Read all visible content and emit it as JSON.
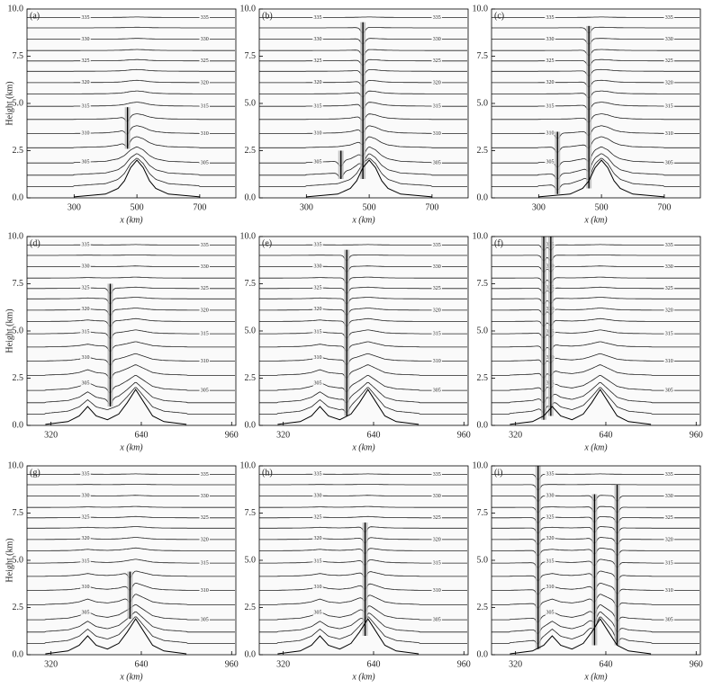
{
  "chart_data": [
    {
      "type": "contour",
      "panel_label": "(a)",
      "xlabel": "x (km)",
      "ylabel": "Height (km)",
      "xlim": [
        150,
        815
      ],
      "xticks": [
        300,
        500,
        700
      ],
      "ylim": [
        0,
        10
      ],
      "yticks": [
        {
          "value": 0,
          "label": "0.0"
        },
        {
          "value": 2.5,
          "label": "2.5"
        },
        {
          "value": 5,
          "label": "5.0"
        },
        {
          "value": 7.5,
          "label": "7.5"
        },
        {
          "value": 10,
          "label": "10.0"
        }
      ],
      "terrain": {
        "x": [
          300,
          400,
          440,
          460,
          480,
          500,
          520,
          540,
          560,
          600,
          700
        ],
        "height": [
          0.05,
          0.2,
          0.5,
          0.9,
          1.6,
          2.0,
          1.6,
          0.9,
          0.5,
          0.2,
          0.05
        ]
      },
      "plumes": {
        "x": [
          470
        ],
        "bottom": [
          2.6
        ],
        "top": [
          4.8
        ]
      },
      "contours": [
        {
          "height": 0.6
        },
        {
          "height": 1.2
        },
        {
          "level": 305,
          "height": 1.85
        },
        {
          "height": 2.65
        },
        {
          "level": 310,
          "height": 3.4
        },
        {
          "height": 4.15
        },
        {
          "level": 315,
          "height": 4.85
        },
        {
          "height": 5.5
        },
        {
          "level": 320,
          "height": 6.1
        },
        {
          "height": 6.7
        },
        {
          "level": 325,
          "height": 7.25
        },
        {
          "height": 7.8
        },
        {
          "level": 330,
          "height": 8.4
        },
        {
          "height": 9.0
        },
        {
          "level": 335,
          "height": 9.55
        }
      ]
    },
    {
      "type": "contour",
      "panel_label": "(b)",
      "xlabel": "x (km)",
      "xlim": [
        150,
        815
      ],
      "xticks": [
        300,
        500,
        700
      ],
      "ylim": [
        0,
        10
      ],
      "yticks": [
        {
          "value": 0,
          "label": "0.0"
        },
        {
          "value": 2.5,
          "label": "2.5"
        },
        {
          "value": 5,
          "label": "5.0"
        },
        {
          "value": 7.5,
          "label": "7.5"
        },
        {
          "value": 10,
          "label": "10.0"
        }
      ],
      "terrain": {
        "x": [
          300,
          400,
          440,
          460,
          480,
          500,
          520,
          540,
          560,
          600,
          700
        ],
        "height": [
          0.05,
          0.2,
          0.5,
          0.9,
          1.6,
          2.0,
          1.6,
          0.9,
          0.5,
          0.2,
          0.05
        ]
      },
      "plumes": {
        "x": [
          480,
          410
        ],
        "bottom": [
          1.0,
          1.0
        ],
        "top": [
          9.3,
          2.5
        ]
      },
      "contours": [
        {
          "height": 0.6
        },
        {
          "height": 1.2
        },
        {
          "level": 305,
          "height": 1.85
        },
        {
          "height": 2.65
        },
        {
          "level": 310,
          "height": 3.4
        },
        {
          "height": 4.15
        },
        {
          "level": 315,
          "height": 4.85
        },
        {
          "height": 5.5
        },
        {
          "level": 320,
          "height": 6.1
        },
        {
          "height": 6.7
        },
        {
          "level": 325,
          "height": 7.25
        },
        {
          "height": 7.8
        },
        {
          "level": 330,
          "height": 8.4
        },
        {
          "height": 9.0
        },
        {
          "level": 335,
          "height": 9.55
        }
      ]
    },
    {
      "type": "contour",
      "panel_label": "(c)",
      "xlabel": "x (km)",
      "xlim": [
        150,
        815
      ],
      "xticks": [
        300,
        500,
        700
      ],
      "ylim": [
        0,
        10
      ],
      "yticks": [
        {
          "value": 0,
          "label": "0.0"
        },
        {
          "value": 2.5,
          "label": "2.5"
        },
        {
          "value": 5,
          "label": "5.0"
        },
        {
          "value": 7.5,
          "label": "7.5"
        },
        {
          "value": 10,
          "label": "10.0"
        }
      ],
      "terrain": {
        "x": [
          300,
          400,
          440,
          460,
          480,
          500,
          520,
          540,
          560,
          600,
          700
        ],
        "height": [
          0.05,
          0.2,
          0.5,
          0.9,
          1.6,
          2.0,
          1.6,
          0.9,
          0.5,
          0.2,
          0.05
        ]
      },
      "plumes": {
        "x": [
          460,
          360
        ],
        "bottom": [
          0.5,
          0.2
        ],
        "top": [
          9.1,
          3.5
        ]
      },
      "contours": [
        {
          "height": 0.6
        },
        {
          "height": 1.2
        },
        {
          "level": 305,
          "height": 1.85
        },
        {
          "height": 2.65
        },
        {
          "level": 310,
          "height": 3.4
        },
        {
          "height": 4.15
        },
        {
          "level": 315,
          "height": 4.85
        },
        {
          "height": 5.5
        },
        {
          "level": 320,
          "height": 6.1
        },
        {
          "height": 6.7
        },
        {
          "level": 325,
          "height": 7.25
        },
        {
          "height": 7.8
        },
        {
          "level": 330,
          "height": 8.4
        },
        {
          "height": 9.0
        },
        {
          "level": 335,
          "height": 9.55
        }
      ]
    },
    {
      "type": "contour",
      "panel_label": "(d)",
      "xlabel": "x (km)",
      "ylabel": "Height (km)",
      "xlim": [
        235,
        975
      ],
      "xticks": [
        320,
        640,
        960
      ],
      "ylim": [
        0,
        10
      ],
      "yticks": [
        {
          "value": 0,
          "label": "0.0"
        },
        {
          "value": 2.5,
          "label": "2.5"
        },
        {
          "value": 5,
          "label": "5.0"
        },
        {
          "value": 7.5,
          "label": "7.5"
        },
        {
          "value": 10,
          "label": "10.0"
        }
      ],
      "terrain": {
        "x": [
          300,
          380,
          420,
          450,
          480,
          520,
          560,
          590,
          620,
          650,
          680,
          720,
          800
        ],
        "height": [
          0.05,
          0.2,
          0.5,
          1.0,
          0.5,
          0.3,
          0.6,
          1.2,
          1.9,
          1.2,
          0.5,
          0.2,
          0.05
        ]
      },
      "plumes": {
        "x": [
          530
        ],
        "bottom": [
          1.0
        ],
        "top": [
          7.5
        ]
      },
      "contours": [
        {
          "height": 0.6
        },
        {
          "height": 1.2
        },
        {
          "level": 305,
          "height": 1.85
        },
        {
          "height": 2.65
        },
        {
          "level": 310,
          "height": 3.4
        },
        {
          "height": 4.15
        },
        {
          "level": 315,
          "height": 4.85
        },
        {
          "height": 5.5
        },
        {
          "level": 320,
          "height": 6.1
        },
        {
          "height": 6.7
        },
        {
          "level": 325,
          "height": 7.25
        },
        {
          "height": 7.8
        },
        {
          "level": 330,
          "height": 8.4
        },
        {
          "height": 9.0
        },
        {
          "level": 335,
          "height": 9.55
        }
      ]
    },
    {
      "type": "contour",
      "panel_label": "(e)",
      "xlabel": "x (km)",
      "xlim": [
        235,
        975
      ],
      "xticks": [
        320,
        640,
        960
      ],
      "ylim": [
        0,
        10
      ],
      "yticks": [
        {
          "value": 0,
          "label": "0.0"
        },
        {
          "value": 2.5,
          "label": "2.5"
        },
        {
          "value": 5,
          "label": "5.0"
        },
        {
          "value": 7.5,
          "label": "7.5"
        },
        {
          "value": 10,
          "label": "10.0"
        }
      ],
      "terrain": {
        "x": [
          300,
          380,
          420,
          450,
          480,
          520,
          560,
          590,
          620,
          650,
          680,
          720,
          800
        ],
        "height": [
          0.05,
          0.2,
          0.5,
          1.0,
          0.5,
          0.3,
          0.6,
          1.2,
          1.9,
          1.2,
          0.5,
          0.2,
          0.05
        ]
      },
      "plumes": {
        "x": [
          545
        ],
        "bottom": [
          0.5
        ],
        "top": [
          9.3
        ]
      },
      "contours": [
        {
          "height": 0.6
        },
        {
          "height": 1.2
        },
        {
          "level": 305,
          "height": 1.85
        },
        {
          "height": 2.65
        },
        {
          "level": 310,
          "height": 3.4
        },
        {
          "height": 4.15
        },
        {
          "level": 315,
          "height": 4.85
        },
        {
          "height": 5.5
        },
        {
          "level": 320,
          "height": 6.1
        },
        {
          "height": 6.7
        },
        {
          "level": 325,
          "height": 7.25
        },
        {
          "height": 7.8
        },
        {
          "level": 330,
          "height": 8.4
        },
        {
          "height": 9.0
        },
        {
          "level": 335,
          "height": 9.55
        }
      ]
    },
    {
      "type": "contour",
      "panel_label": "(f)",
      "xlabel": "x (km)",
      "xlim": [
        235,
        975
      ],
      "xticks": [
        320,
        640,
        960
      ],
      "ylim": [
        0,
        10
      ],
      "yticks": [
        {
          "value": 0,
          "label": "0.0"
        },
        {
          "value": 2.5,
          "label": "2.5"
        },
        {
          "value": 5,
          "label": "5.0"
        },
        {
          "value": 7.5,
          "label": "7.5"
        },
        {
          "value": 10,
          "label": "10.0"
        }
      ],
      "terrain": {
        "x": [
          300,
          380,
          420,
          450,
          480,
          520,
          560,
          590,
          620,
          650,
          680,
          720,
          800
        ],
        "height": [
          0.05,
          0.2,
          0.5,
          1.0,
          0.5,
          0.3,
          0.6,
          1.2,
          1.9,
          1.2,
          0.5,
          0.2,
          0.05
        ]
      },
      "plumes": {
        "x": [
          420,
          445
        ],
        "bottom": [
          0.3,
          0.5
        ],
        "top": [
          10,
          10
        ]
      },
      "contours": [
        {
          "height": 0.6
        },
        {
          "height": 1.2
        },
        {
          "level": 305,
          "height": 1.85
        },
        {
          "height": 2.65
        },
        {
          "level": 310,
          "height": 3.4
        },
        {
          "height": 4.15
        },
        {
          "level": 315,
          "height": 4.85
        },
        {
          "height": 5.5
        },
        {
          "level": 320,
          "height": 6.1
        },
        {
          "height": 6.7
        },
        {
          "level": 325,
          "height": 7.25
        },
        {
          "height": 7.8
        },
        {
          "level": 330,
          "height": 8.4
        },
        {
          "height": 9.0
        },
        {
          "level": 335,
          "height": 9.55
        }
      ]
    },
    {
      "type": "contour",
      "panel_label": "(g)",
      "xlabel": "x (km)",
      "ylabel": "Height (km)",
      "xlim": [
        235,
        975
      ],
      "xticks": [
        320,
        640,
        960
      ],
      "ylim": [
        0,
        10
      ],
      "yticks": [
        {
          "value": 0,
          "label": "0.0"
        },
        {
          "value": 2.5,
          "label": "2.5"
        },
        {
          "value": 5,
          "label": "5.0"
        },
        {
          "value": 7.5,
          "label": "7.5"
        },
        {
          "value": 10,
          "label": "10.0"
        }
      ],
      "terrain": {
        "x": [
          300,
          380,
          420,
          450,
          480,
          520,
          560,
          590,
          620,
          650,
          680,
          720,
          800
        ],
        "height": [
          0.05,
          0.2,
          0.5,
          1.0,
          0.5,
          0.3,
          0.6,
          1.2,
          1.9,
          1.2,
          0.5,
          0.2,
          0.05
        ]
      },
      "plumes": {
        "x": [
          600
        ],
        "bottom": [
          1.9
        ],
        "top": [
          4.4
        ]
      },
      "contours": [
        {
          "height": 0.6
        },
        {
          "height": 1.2
        },
        {
          "level": 305,
          "height": 1.85
        },
        {
          "height": 2.65
        },
        {
          "level": 310,
          "height": 3.4
        },
        {
          "height": 4.15
        },
        {
          "level": 315,
          "height": 4.85
        },
        {
          "height": 5.5
        },
        {
          "level": 320,
          "height": 6.1
        },
        {
          "height": 6.7
        },
        {
          "level": 325,
          "height": 7.25
        },
        {
          "height": 7.8
        },
        {
          "level": 330,
          "height": 8.4
        },
        {
          "height": 9.0
        },
        {
          "level": 335,
          "height": 9.55
        }
      ]
    },
    {
      "type": "contour",
      "panel_label": "(h)",
      "xlabel": "x (km)",
      "xlim": [
        235,
        975
      ],
      "xticks": [
        320,
        640,
        960
      ],
      "ylim": [
        0,
        10
      ],
      "yticks": [
        {
          "value": 0,
          "label": "0.0"
        },
        {
          "value": 2.5,
          "label": "2.5"
        },
        {
          "value": 5,
          "label": "5.0"
        },
        {
          "value": 7.5,
          "label": "7.5"
        },
        {
          "value": 10,
          "label": "10.0"
        }
      ],
      "terrain": {
        "x": [
          300,
          380,
          420,
          450,
          480,
          520,
          560,
          590,
          620,
          650,
          680,
          720,
          800
        ],
        "height": [
          0.05,
          0.2,
          0.5,
          1.0,
          0.5,
          0.3,
          0.6,
          1.2,
          1.9,
          1.2,
          0.5,
          0.2,
          0.05
        ]
      },
      "plumes": {
        "x": [
          610
        ],
        "bottom": [
          1.0
        ],
        "top": [
          7.0
        ]
      },
      "contours": [
        {
          "height": 0.6
        },
        {
          "height": 1.2
        },
        {
          "level": 305,
          "height": 1.85
        },
        {
          "height": 2.65
        },
        {
          "level": 310,
          "height": 3.4
        },
        {
          "height": 4.15
        },
        {
          "level": 315,
          "height": 4.85
        },
        {
          "height": 5.5
        },
        {
          "level": 320,
          "height": 6.1
        },
        {
          "height": 6.7
        },
        {
          "level": 325,
          "height": 7.25
        },
        {
          "height": 7.8
        },
        {
          "level": 330,
          "height": 8.4
        },
        {
          "height": 9.0
        },
        {
          "level": 335,
          "height": 9.55
        }
      ]
    },
    {
      "type": "contour",
      "panel_label": "(i)",
      "xlabel": "x (km)",
      "xlim": [
        235,
        975
      ],
      "xticks": [
        320,
        640,
        960
      ],
      "ylim": [
        0,
        10
      ],
      "yticks": [
        {
          "value": 0,
          "label": "0.0"
        },
        {
          "value": 2.5,
          "label": "2.5"
        },
        {
          "value": 5,
          "label": "5.0"
        },
        {
          "value": 7.5,
          "label": "7.5"
        },
        {
          "value": 10,
          "label": "10.0"
        }
      ],
      "terrain": {
        "x": [
          300,
          380,
          420,
          450,
          480,
          520,
          560,
          590,
          620,
          650,
          680,
          720,
          800
        ],
        "height": [
          0.05,
          0.2,
          0.5,
          1.0,
          0.5,
          0.3,
          0.6,
          1.2,
          1.9,
          1.2,
          0.5,
          0.2,
          0.05
        ]
      },
      "plumes": {
        "x": [
          400,
          600,
          680
        ],
        "bottom": [
          0.3,
          0.5,
          0.5
        ],
        "top": [
          10,
          8.5,
          9.0
        ]
      },
      "contours": [
        {
          "height": 0.6
        },
        {
          "height": 1.2
        },
        {
          "level": 305,
          "height": 1.85
        },
        {
          "height": 2.65
        },
        {
          "level": 310,
          "height": 3.4
        },
        {
          "height": 4.15
        },
        {
          "level": 315,
          "height": 4.85
        },
        {
          "height": 5.5
        },
        {
          "level": 320,
          "height": 6.1
        },
        {
          "height": 6.7
        },
        {
          "level": 325,
          "height": 7.25
        },
        {
          "height": 7.8
        },
        {
          "level": 330,
          "height": 8.4
        },
        {
          "height": 9.0
        },
        {
          "level": 335,
          "height": 9.55
        }
      ]
    }
  ]
}
